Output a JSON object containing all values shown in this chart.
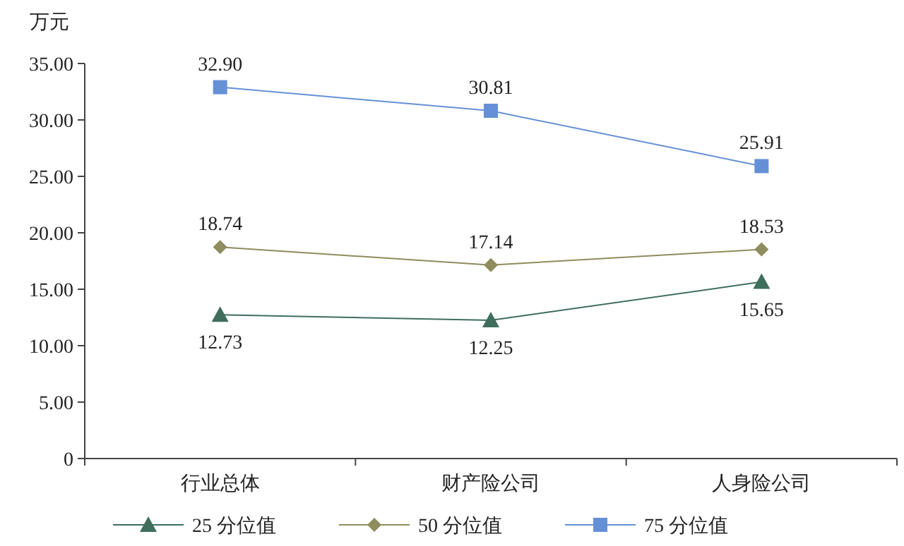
{
  "chart_data": {
    "type": "line",
    "ylabel": "万元",
    "categories": [
      "行业总体",
      "财产险公司",
      "人身险公司"
    ],
    "ylim": [
      0,
      35
    ],
    "yticks": [
      0,
      {
        "value": 5,
        "label": "5.00"
      },
      {
        "value": 10,
        "label": "10.00"
      },
      {
        "value": 15,
        "label": "15.00"
      },
      {
        "value": 20,
        "label": "20.00"
      },
      {
        "value": 25,
        "label": "25.00"
      },
      {
        "value": 30,
        "label": "30.00"
      },
      {
        "value": 35,
        "label": "35.00"
      }
    ],
    "legend": "bottom",
    "line_style": "solid",
    "series": [
      {
        "name": "25 分位值",
        "color": "#3f6e5c",
        "marker": "triangle",
        "values": [
          12.73,
          12.25,
          15.65
        ],
        "value_labels": [
          "12.73",
          "12.25",
          "15.65"
        ]
      },
      {
        "name": "50 分位值",
        "color": "#8f8c5e",
        "marker": "diamond",
        "values": [
          18.74,
          17.14,
          18.53
        ],
        "value_labels": [
          "18.74",
          "17.14",
          "18.53"
        ]
      },
      {
        "name": "75 分位值",
        "color": "#6590d6",
        "marker": "square",
        "values": [
          32.9,
          30.81,
          25.91
        ],
        "value_labels": [
          "32.90",
          "30.81",
          "25.91"
        ]
      }
    ]
  }
}
